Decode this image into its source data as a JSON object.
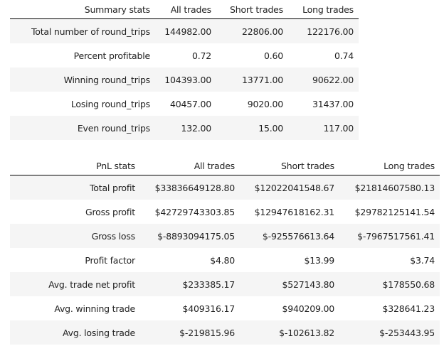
{
  "summary": {
    "headers": [
      "Summary stats",
      "All trades",
      "Short trades",
      "Long trades"
    ],
    "rows": [
      [
        "Total number of round_trips",
        "144982.00",
        "22806.00",
        "122176.00"
      ],
      [
        "Percent profitable",
        "0.72",
        "0.60",
        "0.74"
      ],
      [
        "Winning round_trips",
        "104393.00",
        "13771.00",
        "90622.00"
      ],
      [
        "Losing round_trips",
        "40457.00",
        "9020.00",
        "31437.00"
      ],
      [
        "Even round_trips",
        "132.00",
        "15.00",
        "117.00"
      ]
    ]
  },
  "pnl": {
    "headers": [
      "PnL stats",
      "All trades",
      "Short trades",
      "Long trades"
    ],
    "rows": [
      [
        "Total profit",
        "$33836649128.80",
        "$12022041548.67",
        "$21814607580.13"
      ],
      [
        "Gross profit",
        "$42729743303.85",
        "$12947618162.31",
        "$29782125141.54"
      ],
      [
        "Gross loss",
        "$-8893094175.05",
        "$-925576613.64",
        "$-7967517561.41"
      ],
      [
        "Profit factor",
        "$4.80",
        "$13.99",
        "$3.74"
      ],
      [
        "Avg. trade net profit",
        "$233385.17",
        "$527143.80",
        "$178550.68"
      ],
      [
        "Avg. winning trade",
        "$409316.17",
        "$940209.00",
        "$328641.23"
      ],
      [
        "Avg. losing trade",
        "$-219815.96",
        "$-102613.82",
        "$-253443.95"
      ]
    ]
  }
}
